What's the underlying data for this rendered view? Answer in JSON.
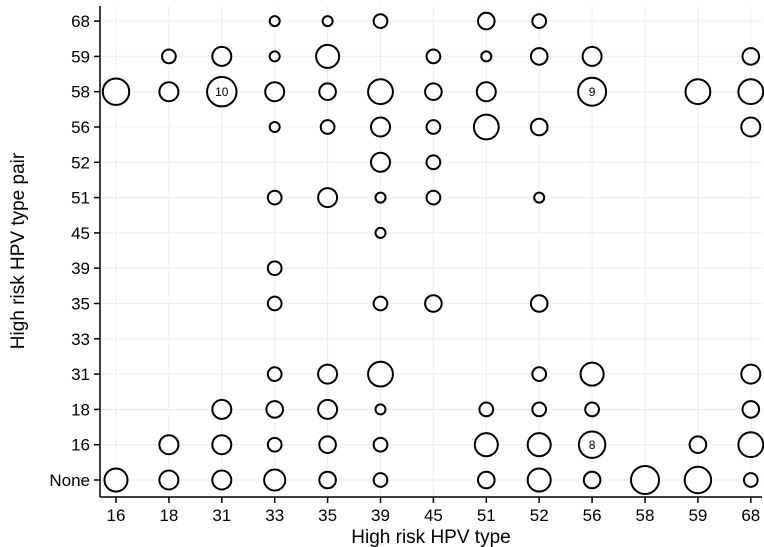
{
  "chart_data": {
    "type": "scatter",
    "xlabel": "High risk HPV type",
    "ylabel": "High risk HPV type pair",
    "x_categories": [
      "16",
      "18",
      "31",
      "33",
      "35",
      "39",
      "45",
      "51",
      "52",
      "56",
      "58",
      "59",
      "68"
    ],
    "y_categories": [
      "None",
      "16",
      "18",
      "31",
      "33",
      "35",
      "39",
      "45",
      "51",
      "52",
      "56",
      "58",
      "59",
      "68"
    ],
    "grid": true,
    "size_encoding": "count",
    "points": [
      {
        "x": "33",
        "y": "68",
        "size": 1
      },
      {
        "x": "35",
        "y": "68",
        "size": 1
      },
      {
        "x": "39",
        "y": "68",
        "size": 2
      },
      {
        "x": "51",
        "y": "68",
        "size": 3
      },
      {
        "x": "52",
        "y": "68",
        "size": 2
      },
      {
        "x": "18",
        "y": "59",
        "size": 2
      },
      {
        "x": "31",
        "y": "59",
        "size": 4
      },
      {
        "x": "33",
        "y": "59",
        "size": 1
      },
      {
        "x": "35",
        "y": "59",
        "size": 6
      },
      {
        "x": "45",
        "y": "59",
        "size": 2
      },
      {
        "x": "51",
        "y": "59",
        "size": 1
      },
      {
        "x": "52",
        "y": "59",
        "size": 3
      },
      {
        "x": "56",
        "y": "59",
        "size": 4
      },
      {
        "x": "68",
        "y": "59",
        "size": 3
      },
      {
        "x": "16",
        "y": "58",
        "size": 8
      },
      {
        "x": "18",
        "y": "58",
        "size": 4
      },
      {
        "x": "31",
        "y": "58",
        "size": 10,
        "label": "10"
      },
      {
        "x": "33",
        "y": "58",
        "size": 4
      },
      {
        "x": "35",
        "y": "58",
        "size": 3
      },
      {
        "x": "39",
        "y": "58",
        "size": 7
      },
      {
        "x": "45",
        "y": "58",
        "size": 3
      },
      {
        "x": "51",
        "y": "58",
        "size": 4
      },
      {
        "x": "56",
        "y": "58",
        "size": 9,
        "label": "9"
      },
      {
        "x": "59",
        "y": "58",
        "size": 7
      },
      {
        "x": "68",
        "y": "58",
        "size": 7
      },
      {
        "x": "33",
        "y": "56",
        "size": 1
      },
      {
        "x": "35",
        "y": "56",
        "size": 2
      },
      {
        "x": "39",
        "y": "56",
        "size": 4
      },
      {
        "x": "45",
        "y": "56",
        "size": 2
      },
      {
        "x": "51",
        "y": "56",
        "size": 7
      },
      {
        "x": "52",
        "y": "56",
        "size": 3
      },
      {
        "x": "68",
        "y": "56",
        "size": 4
      },
      {
        "x": "39",
        "y": "52",
        "size": 4
      },
      {
        "x": "45",
        "y": "52",
        "size": 2
      },
      {
        "x": "33",
        "y": "51",
        "size": 2
      },
      {
        "x": "35",
        "y": "51",
        "size": 4
      },
      {
        "x": "39",
        "y": "51",
        "size": 1
      },
      {
        "x": "45",
        "y": "51",
        "size": 2
      },
      {
        "x": "52",
        "y": "51",
        "size": 1
      },
      {
        "x": "39",
        "y": "45",
        "size": 1
      },
      {
        "x": "33",
        "y": "39",
        "size": 2
      },
      {
        "x": "33",
        "y": "35",
        "size": 2
      },
      {
        "x": "39",
        "y": "35",
        "size": 2
      },
      {
        "x": "45",
        "y": "35",
        "size": 3
      },
      {
        "x": "52",
        "y": "35",
        "size": 3
      },
      {
        "x": "33",
        "y": "31",
        "size": 2
      },
      {
        "x": "35",
        "y": "31",
        "size": 4
      },
      {
        "x": "39",
        "y": "31",
        "size": 7
      },
      {
        "x": "52",
        "y": "31",
        "size": 2
      },
      {
        "x": "56",
        "y": "31",
        "size": 6
      },
      {
        "x": "68",
        "y": "31",
        "size": 4
      },
      {
        "x": "31",
        "y": "18",
        "size": 4
      },
      {
        "x": "33",
        "y": "18",
        "size": 3
      },
      {
        "x": "35",
        "y": "18",
        "size": 4
      },
      {
        "x": "39",
        "y": "18",
        "size": 1
      },
      {
        "x": "51",
        "y": "18",
        "size": 2
      },
      {
        "x": "52",
        "y": "18",
        "size": 2
      },
      {
        "x": "56",
        "y": "18",
        "size": 2
      },
      {
        "x": "68",
        "y": "18",
        "size": 3
      },
      {
        "x": "18",
        "y": "16",
        "size": 4
      },
      {
        "x": "31",
        "y": "16",
        "size": 4
      },
      {
        "x": "33",
        "y": "16",
        "size": 2
      },
      {
        "x": "35",
        "y": "16",
        "size": 3
      },
      {
        "x": "39",
        "y": "16",
        "size": 2
      },
      {
        "x": "51",
        "y": "16",
        "size": 6
      },
      {
        "x": "52",
        "y": "16",
        "size": 6
      },
      {
        "x": "56",
        "y": "16",
        "size": 8,
        "label": "8"
      },
      {
        "x": "59",
        "y": "16",
        "size": 3
      },
      {
        "x": "68",
        "y": "16",
        "size": 7
      },
      {
        "x": "16",
        "y": "None",
        "size": 6
      },
      {
        "x": "18",
        "y": "None",
        "size": 4
      },
      {
        "x": "31",
        "y": "None",
        "size": 4
      },
      {
        "x": "33",
        "y": "None",
        "size": 5
      },
      {
        "x": "35",
        "y": "None",
        "size": 3
      },
      {
        "x": "39",
        "y": "None",
        "size": 2
      },
      {
        "x": "51",
        "y": "None",
        "size": 3
      },
      {
        "x": "52",
        "y": "None",
        "size": 6
      },
      {
        "x": "56",
        "y": "None",
        "size": 3
      },
      {
        "x": "58",
        "y": "None",
        "size": 9
      },
      {
        "x": "59",
        "y": "None",
        "size": 8
      },
      {
        "x": "68",
        "y": "None",
        "size": 2
      }
    ]
  }
}
